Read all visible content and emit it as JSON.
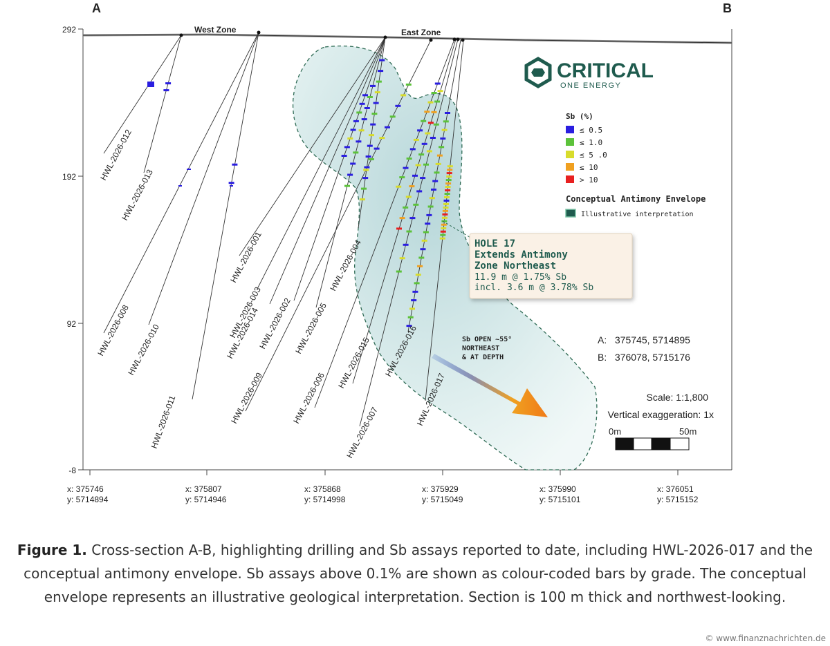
{
  "section": {
    "start_label": "A",
    "end_label": "B",
    "zones": [
      "West Zone",
      "East Zone"
    ]
  },
  "elevation_ticks": [
    "292",
    "192",
    "92",
    "-8"
  ],
  "easting_ticks": [
    {
      "x": "x: 375746",
      "y": "y: 5714894"
    },
    {
      "x": "x: 375807",
      "y": "y: 5714946"
    },
    {
      "x": "x: 375868",
      "y": "y: 5714998"
    },
    {
      "x": "x: 375929",
      "y": "y: 5715049"
    },
    {
      "x": "x: 375990",
      "y": "y: 5715101"
    },
    {
      "x": "x: 376051",
      "y": "y: 5715152"
    }
  ],
  "holes": [
    "HWL-2026-012",
    "HWL-2026-013",
    "HWL-2026-008",
    "HWL-2026-010",
    "HWL-2026-011",
    "HWL-2026-001",
    "HWL-2026-003",
    "HWL-2026-014",
    "HWL-2026-002",
    "HWL-2026-005",
    "HWL-2026-004",
    "HWL-2026-009",
    "HWL-2026-006",
    "HWL-2026-015",
    "HWL-2026-007",
    "HWL-2026-016",
    "HWL-2026-017"
  ],
  "logo": {
    "name": "CRITICAL",
    "tagline": "ONE ENERGY",
    "color": "#1f5b4e"
  },
  "legend": {
    "title": "Sb (%)",
    "items": [
      {
        "label": "≤ 0.5",
        "color": "#2a1ee0"
      },
      {
        "label": "≤ 1.0",
        "color": "#5cc23a"
      },
      {
        "label": "≤ 5 .0",
        "color": "#d8dc2c"
      },
      {
        "label": "≤ 10",
        "color": "#f0a020"
      },
      {
        "label": "> 10",
        "color": "#e82020"
      }
    ],
    "envelope_title": "Conceptual Antimony Envelope",
    "envelope_label": "Illustrative interpretation"
  },
  "callout": {
    "title_lines": [
      "HOLE 17",
      "Extends Antimony",
      "Zone Northeast"
    ],
    "detail_lines": [
      "11.9 m @ 1.75% Sb",
      "incl. 3.6 m @ 3.78% Sb"
    ]
  },
  "arrow_label": [
    "Sb OPEN ~55°",
    "NORTHEAST",
    "& AT DEPTH"
  ],
  "coords": {
    "a": "A:   375745, 5714895",
    "b": "B:   376078, 5715176"
  },
  "scale": {
    "text": "Scale: 1:1,800",
    "exaggeration": "Vertical exaggeration: 1x",
    "zero": "0m",
    "end": "50m"
  },
  "caption": {
    "bold": "Figure 1.",
    "text": " Cross-section A-B, highlighting drilling and Sb assays reported to date, including HWL-2026-017 and the conceptual antimony envelope. Sb assays above 0.1% are shown as colour-coded bars by grade. The conceptual envelope represents an illustrative geological interpretation. Section is 100 m thick and northwest-looking."
  },
  "watermark": "© www.finanznachrichten.de"
}
